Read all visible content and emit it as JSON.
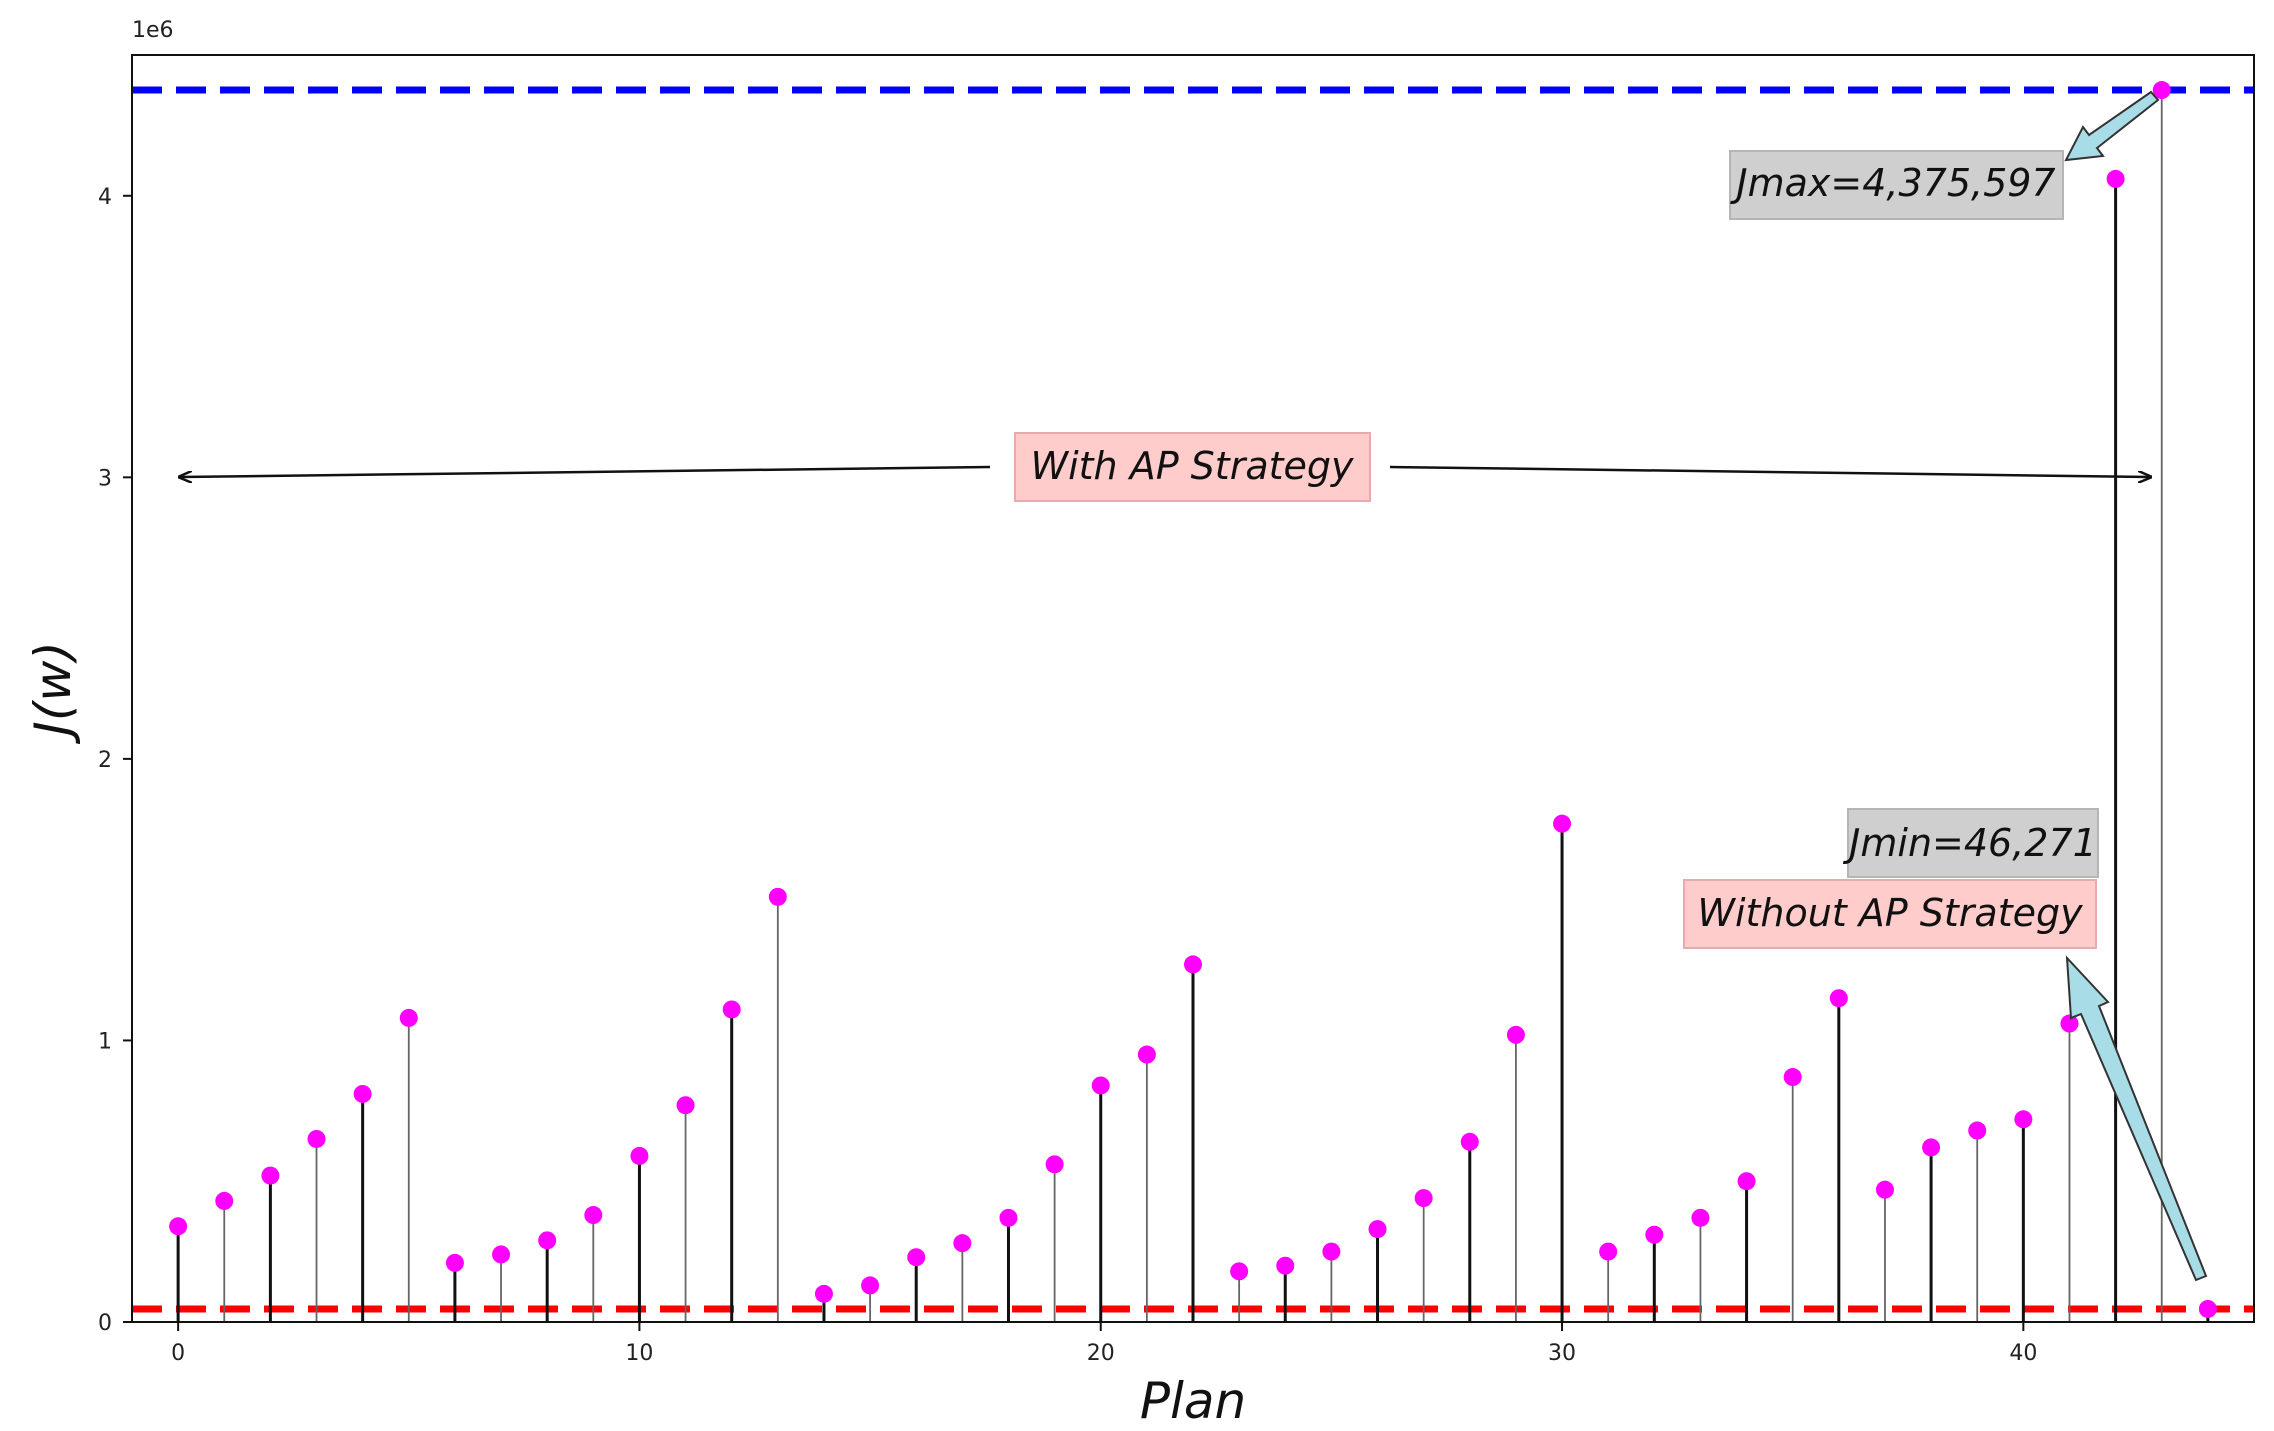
{
  "chart_data": {
    "type": "stem",
    "xlabel": "Plan",
    "ylabel": "J(w)",
    "y_offset_label": "1e6",
    "xlim": [
      -1,
      45
    ],
    "ylim": [
      0,
      4.5
    ],
    "x_ticks": [
      0,
      10,
      20,
      30,
      40
    ],
    "y_ticks": [
      0,
      1,
      2,
      3,
      4
    ],
    "marker_color": "#ff00ff",
    "x": [
      0,
      1,
      2,
      3,
      4,
      5,
      6,
      7,
      8,
      9,
      10,
      11,
      12,
      13,
      14,
      15,
      16,
      17,
      18,
      19,
      20,
      21,
      22,
      23,
      24,
      25,
      26,
      27,
      28,
      29,
      30,
      31,
      32,
      33,
      34,
      35,
      36,
      37,
      38,
      39,
      40,
      41,
      42,
      43,
      44
    ],
    "values": [
      0.34,
      0.43,
      0.52,
      0.65,
      0.81,
      1.08,
      0.21,
      0.24,
      0.29,
      0.38,
      0.59,
      0.77,
      1.11,
      1.51,
      0.1,
      0.13,
      0.23,
      0.28,
      0.37,
      0.56,
      0.84,
      0.95,
      1.27,
      0.18,
      0.2,
      0.25,
      0.33,
      0.44,
      0.64,
      1.02,
      1.77,
      0.25,
      0.31,
      0.37,
      0.5,
      0.87,
      1.15,
      0.47,
      0.62,
      0.68,
      0.72,
      1.06,
      4.06,
      4.375597,
      0.046271
    ],
    "reference_lines": [
      {
        "name": "max",
        "value": 4.375597,
        "color": "#0000ff"
      },
      {
        "name": "min",
        "value": 0.046271,
        "color": "#ff0000"
      }
    ],
    "annotations": {
      "jmax": "Jmax=4,375,597",
      "jmin": "Jmin=46,271",
      "with_ap": "With AP Strategy",
      "without_ap": "Without AP Strategy"
    },
    "annotation_colors": {
      "gray_box": "#cfcfcf",
      "pink_box": "#ffcccc",
      "arrow": "#a8dce6"
    }
  }
}
